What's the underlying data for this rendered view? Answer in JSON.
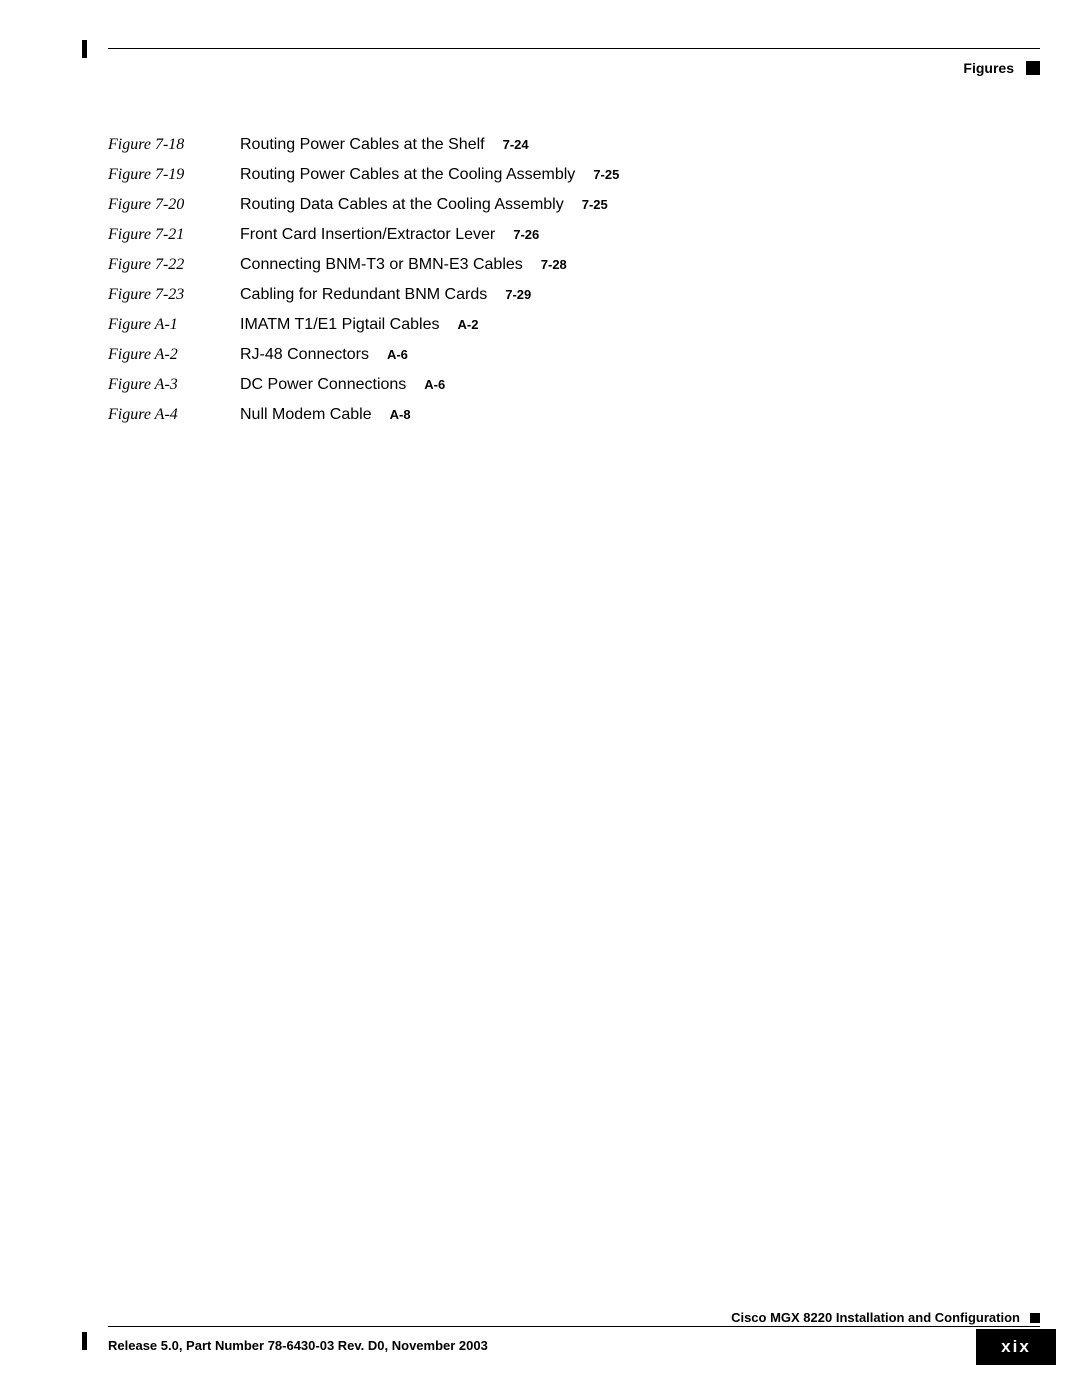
{
  "header": {
    "section_label": "Figures"
  },
  "entries": [
    {
      "label": "Figure 7-18",
      "title": "Routing Power Cables at the Shelf",
      "page": "7-24"
    },
    {
      "label": "Figure 7-19",
      "title": "Routing Power Cables at the Cooling Assembly",
      "page": "7-25"
    },
    {
      "label": "Figure 7-20",
      "title": "Routing Data Cables at the Cooling Assembly",
      "page": "7-25"
    },
    {
      "label": "Figure 7-21",
      "title": "Front Card Insertion/Extractor Lever",
      "page": "7-26"
    },
    {
      "label": "Figure 7-22",
      "title": "Connecting BNM-T3 or BMN-E3 Cables",
      "page": "7-28"
    },
    {
      "label": "Figure 7-23",
      "title": "Cabling for Redundant BNM Cards",
      "page": "7-29"
    },
    {
      "label": "Figure A-1",
      "title": "IMATM T1/E1 Pigtail Cables",
      "page": "A-2"
    },
    {
      "label": "Figure A-2",
      "title": "RJ-48 Connectors",
      "page": "A-6"
    },
    {
      "label": "Figure A-3",
      "title": "DC Power Connections",
      "page": "A-6"
    },
    {
      "label": "Figure A-4",
      "title": "Null Modem Cable",
      "page": "A-8"
    }
  ],
  "footer": {
    "doc_title": "Cisco MGX 8220 Installation and Configuration",
    "release": "Release 5.0, Part Number 78-6430-03 Rev. D0, November 2003",
    "page_number": "xix"
  }
}
